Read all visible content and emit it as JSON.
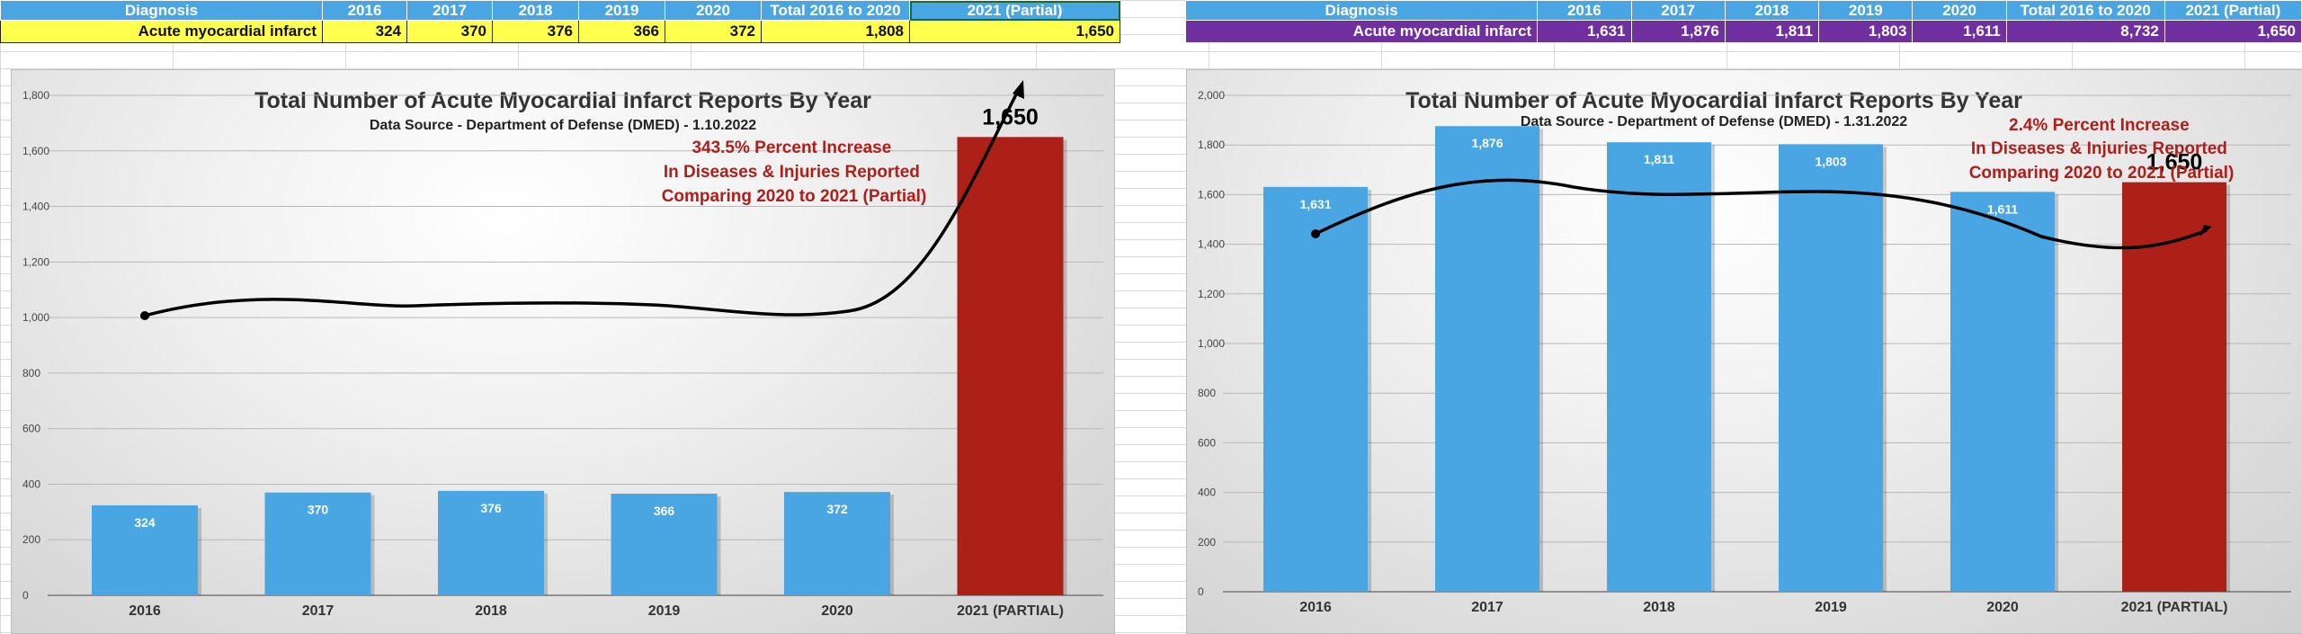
{
  "tables": [
    {
      "headers": [
        "Diagnosis",
        "2016",
        "2017",
        "2018",
        "2019",
        "2020",
        "Total 2016 to 2020",
        "2021 (Partial)"
      ],
      "row": [
        "Acute myocardial infarct",
        "324",
        "370",
        "376",
        "366",
        "372",
        "1,808",
        "1,650"
      ]
    },
    {
      "headers": [
        "Diagnosis",
        "2016",
        "2017",
        "2018",
        "2019",
        "2020",
        "Total 2016 to 2020",
        "2021 (Partial)"
      ],
      "row": [
        "Acute myocardial infarct",
        "1,631",
        "1,876",
        "1,811",
        "1,803",
        "1,611",
        "8,732",
        "1,650"
      ]
    }
  ],
  "chart_data": [
    {
      "type": "bar",
      "title": "Total Number of Acute Myocardial Infarct Reports By Year",
      "subtitle": "Data Source - Department of Defense (DMED) - 1.10.2022",
      "categories": [
        "2016",
        "2017",
        "2018",
        "2019",
        "2020",
        "2021 (PARTIAL)"
      ],
      "values": [
        324,
        370,
        376,
        366,
        372,
        1650
      ],
      "value_labels": [
        "324",
        "370",
        "376",
        "366",
        "372",
        "1,650"
      ],
      "ylim": [
        0,
        1800
      ],
      "yticks": [
        0,
        200,
        400,
        600,
        800,
        1000,
        1200,
        1400,
        1600,
        1800
      ],
      "ytick_labels": [
        "0",
        "200",
        "400",
        "600",
        "800",
        "1,000",
        "1,200",
        "1,400",
        "1,600",
        "1,800"
      ],
      "bar_colors": [
        "#4aa6e2",
        "#4aa6e2",
        "#4aa6e2",
        "#4aa6e2",
        "#4aa6e2",
        "#ad2018"
      ],
      "grid": true,
      "annotation": [
        "343.5% Percent Increase",
        "In Diseases & Injuries Reported",
        "Comparing 2020 to 2021 (Partial)"
      ]
    },
    {
      "type": "bar",
      "title": "Total Number of Acute Myocardial Infarct Reports By Year",
      "subtitle": "Data Source - Department of Defense (DMED) - 1.31.2022",
      "categories": [
        "2016",
        "2017",
        "2018",
        "2019",
        "2020",
        "2021 (PARTIAL)"
      ],
      "values": [
        1631,
        1876,
        1811,
        1803,
        1611,
        1650
      ],
      "value_labels": [
        "1,631",
        "1,876",
        "1,811",
        "1,803",
        "1,611",
        "1,650"
      ],
      "ylim": [
        0,
        2000
      ],
      "yticks": [
        0,
        200,
        400,
        600,
        800,
        1000,
        1200,
        1400,
        1600,
        1800,
        2000
      ],
      "ytick_labels": [
        "0",
        "200",
        "400",
        "600",
        "800",
        "1,000",
        "1,200",
        "1,400",
        "1,600",
        "1,800",
        "2,000"
      ],
      "bar_colors": [
        "#4aa6e2",
        "#4aa6e2",
        "#4aa6e2",
        "#4aa6e2",
        "#4aa6e2",
        "#ad2018"
      ],
      "grid": true,
      "annotation": [
        "2.4% Percent Increase",
        "In Diseases & Injuries Reported",
        "Comparing 2020 to 2021 (Partial)"
      ]
    }
  ]
}
